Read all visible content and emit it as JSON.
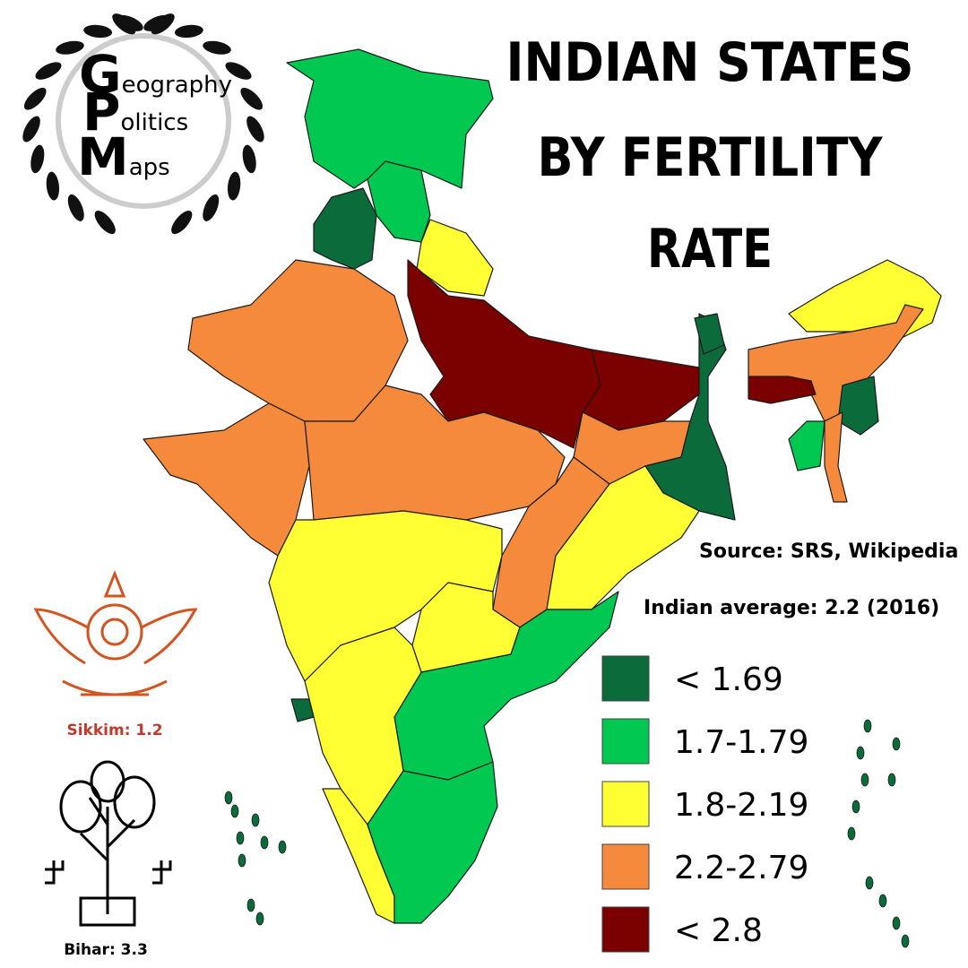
{
  "title_lines": [
    "INDIAN STATES",
    "BY FERTILITY",
    "RATE"
  ],
  "logo": {
    "words": [
      "Geography",
      "Politics",
      "Maps"
    ]
  },
  "source": "Source: SRS, Wikipedia",
  "average": "Indian average: 2.2 (2016)",
  "legend": [
    {
      "label": "< 1.69",
      "color": "#0b6b3a"
    },
    {
      "label": "1.7-1.79",
      "color": "#00c850"
    },
    {
      "label": "1.8-2.19",
      "color": "#ffff33"
    },
    {
      "label": "2.2-2.79",
      "color": "#f58a3d"
    },
    {
      "label": "< 2.8",
      "color": "#7b0000"
    }
  ],
  "emblems": [
    {
      "label": "Sikkim: 1.2"
    },
    {
      "label": "Bihar: 3.3"
    }
  ]
}
